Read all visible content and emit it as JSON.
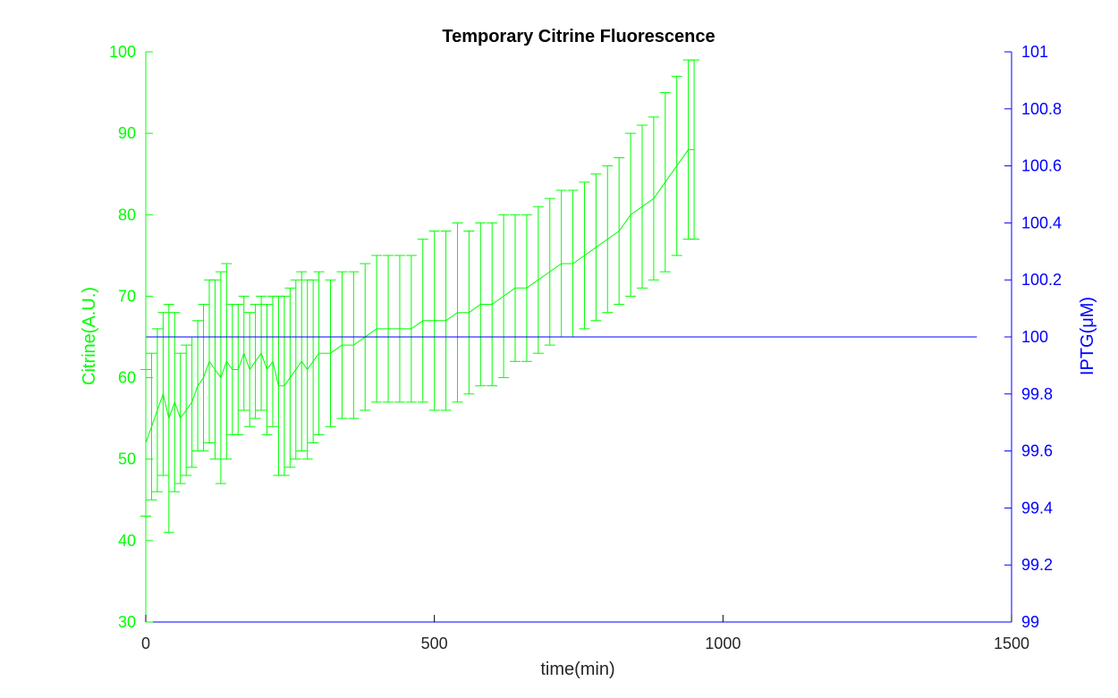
{
  "chart_data": {
    "type": "line",
    "title": "Temporary Citrine Fluorescence",
    "xlabel": "time(min)",
    "ylabel_left": "Citrine(A.U.)",
    "ylabel_right": "IPTG(μM)",
    "xlim": [
      0,
      1500
    ],
    "ylim_left": [
      30,
      100
    ],
    "ylim_right": [
      99,
      101
    ],
    "x_ticks": [
      "0",
      "500",
      "1000",
      "1500"
    ],
    "y_left_ticks": [
      "30",
      "40",
      "50",
      "60",
      "70",
      "80",
      "90",
      "100"
    ],
    "y_right_ticks": [
      "99",
      "99.2",
      "99.4",
      "99.6",
      "99.8",
      "100",
      "100.2",
      "100.4",
      "100.6",
      "100.8",
      "101"
    ],
    "grid": false,
    "colors": {
      "citrine": "#00ff00",
      "iptg": "#0000ff",
      "axis_left": "#00ff00",
      "axis_right": "#0000ff",
      "axis_x": "#000000"
    },
    "series": [
      {
        "axis": "left",
        "error_bars": true,
        "x": [
          0,
          10,
          20,
          30,
          40,
          50,
          60,
          70,
          80,
          90,
          100,
          110,
          120,
          130,
          140,
          150,
          160,
          170,
          180,
          190,
          200,
          210,
          220,
          230,
          240,
          250,
          260,
          270,
          280,
          290,
          300,
          320,
          340,
          360,
          380,
          400,
          420,
          440,
          460,
          480,
          500,
          520,
          540,
          560,
          580,
          600,
          620,
          640,
          660,
          680,
          700,
          720,
          740,
          760,
          780,
          800,
          820,
          840,
          860,
          880,
          900,
          920,
          940,
          950
        ],
        "y": [
          52,
          54,
          56,
          58,
          55,
          57,
          55,
          56,
          57,
          59,
          60,
          62,
          61,
          60,
          62,
          61,
          61,
          63,
          61,
          62,
          63,
          61,
          62,
          59,
          59,
          60,
          61,
          62,
          61,
          62,
          63,
          63,
          64,
          64,
          65,
          66,
          66,
          66,
          66,
          67,
          67,
          67,
          68,
          68,
          69,
          69,
          70,
          71,
          71,
          72,
          73,
          74,
          74,
          75,
          76,
          77,
          78,
          80,
          81,
          82,
          84,
          86,
          88,
          88
        ],
        "err": [
          9,
          9,
          10,
          10,
          14,
          11,
          8,
          8,
          8,
          8,
          9,
          10,
          11,
          13,
          12,
          8,
          8,
          7,
          7,
          7,
          7,
          8,
          8,
          11,
          11,
          11,
          11,
          11,
          11,
          10,
          10,
          9,
          9,
          9,
          9,
          9,
          9,
          9,
          9,
          10,
          11,
          11,
          11,
          10,
          10,
          10,
          10,
          9,
          9,
          9,
          9,
          9,
          9,
          9,
          9,
          9,
          9,
          10,
          10,
          10,
          11,
          11,
          11,
          11
        ]
      },
      {
        "axis": "right",
        "error_bars": false,
        "x": [
          0,
          1440
        ],
        "y": [
          100,
          100
        ]
      }
    ]
  }
}
